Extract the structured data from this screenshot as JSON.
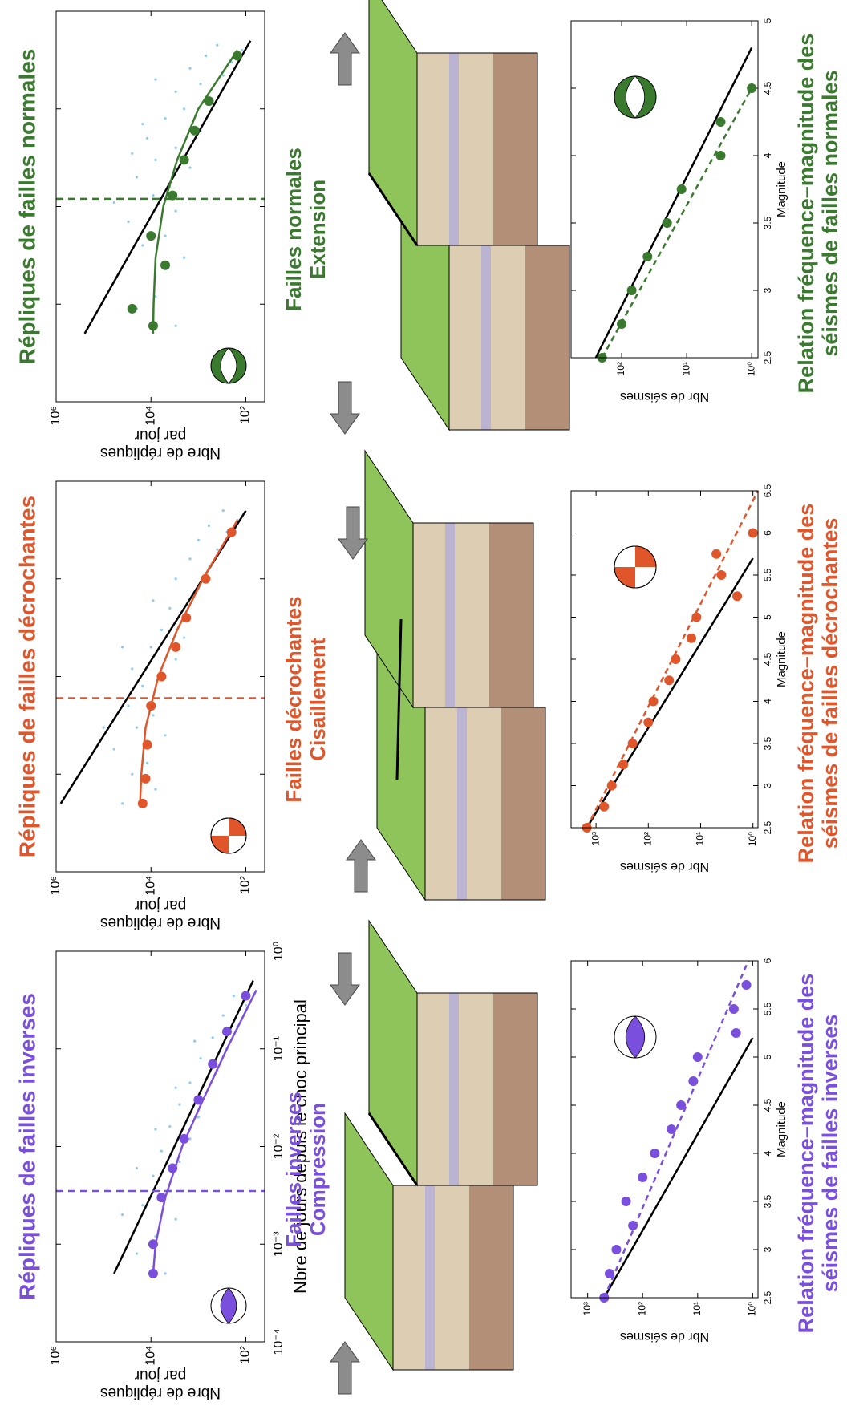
{
  "chart_data": [
    {
      "type": "scatter",
      "title": "Répliques de failles normales",
      "color": "#3a7a2f",
      "ylabel": [
        "Nbre de répliques",
        "par jour"
      ],
      "xlog": true,
      "ylog": true,
      "xlim": [
        0.0001,
        1
      ],
      "ylim": [
        40,
        1000000
      ],
      "xticks": [
        0.0001,
        0.001,
        0.01,
        0.1,
        1
      ],
      "yticks": [
        {
          "value": 1000000,
          "label": "10⁶"
        },
        {
          "value": 10000,
          "label": "10⁴"
        },
        {
          "value": 100,
          "label": "10²"
        }
      ],
      "vline": {
        "x": 0.012,
        "color": "#3a7a2f"
      },
      "series": [
        {
          "style": "dots",
          "color": "#8ecbf0",
          "x": [
            0.0006,
            0.0009,
            0.0012,
            0.002,
            0.003,
            0.004,
            0.005,
            0.007,
            0.009,
            0.011,
            0.013,
            0.016,
            0.02,
            0.025,
            0.03,
            0.04,
            0.05,
            0.06,
            0.08,
            0.1,
            0.12,
            0.15,
            0.18,
            0.22,
            0.26,
            0.3,
            0.35,
            0.4,
            0.45,
            0.2,
            0.07,
            0.035
          ],
          "y": [
            3000,
            20000,
            8000,
            50000,
            2000,
            15000,
            5000,
            30000,
            3000,
            60000,
            9000,
            4000,
            20000,
            1500,
            8000,
            3000,
            12000,
            900,
            5000,
            2000,
            600,
            3000,
            900,
            300,
            1500,
            200,
            700,
            120,
            400,
            8000,
            15000,
            25000
          ]
        },
        {
          "style": "line",
          "color": "#000000",
          "x": [
            0.0005,
            0.5
          ],
          "y": [
            250000,
            80
          ]
        },
        {
          "style": "line",
          "color": "#3a7a2f",
          "x": [
            0.0005,
            0.001,
            0.003,
            0.01,
            0.03,
            0.1,
            0.4
          ],
          "y": [
            9000,
            8800,
            8000,
            5500,
            2800,
            1000,
            150
          ]
        },
        {
          "style": "markers",
          "color": "#3a7a2f",
          "x": [
            0.0006,
            0.0009,
            0.0025,
            0.005,
            0.013,
            0.03,
            0.06,
            0.12,
            0.35
          ],
          "y": [
            9000,
            25000,
            5000,
            10000,
            3500,
            2000,
            1200,
            600,
            150
          ]
        }
      ]
    },
    {
      "type": "scatter",
      "title": "Répliques de failles décrochantes",
      "color": "#e0562a",
      "ylabel": [
        "Nbre de répliques",
        "par jour"
      ],
      "xlog": true,
      "ylog": true,
      "xlim": [
        0.0001,
        1
      ],
      "ylim": [
        40,
        1000000
      ],
      "xticks": [
        0.0001,
        0.001,
        0.01,
        0.1,
        1
      ],
      "yticks": [
        {
          "value": 1000000,
          "label": "10⁶"
        },
        {
          "value": 10000,
          "label": "10⁴"
        },
        {
          "value": 100,
          "label": "10²"
        }
      ],
      "vline": {
        "x": 0.006,
        "color": "#e0562a"
      },
      "series": [
        {
          "style": "dots",
          "color": "#8ecbf0",
          "x": [
            0.0005,
            0.0007,
            0.001,
            0.0013,
            0.0018,
            0.0025,
            0.003,
            0.004,
            0.005,
            0.006,
            0.008,
            0.01,
            0.012,
            0.015,
            0.02,
            0.025,
            0.03,
            0.04,
            0.05,
            0.06,
            0.08,
            0.1,
            0.13,
            0.16,
            0.2,
            0.25,
            0.3,
            0.35,
            0.4,
            0.5,
            0.003,
            0.02
          ],
          "y": [
            40000,
            8000,
            25000,
            12000,
            60000,
            5000,
            20000,
            9000,
            30000,
            4000,
            15000,
            6000,
            25000,
            3000,
            10000,
            2000,
            6000,
            1500,
            4000,
            9000,
            1000,
            3000,
            600,
            1500,
            400,
            1000,
            250,
            600,
            150,
            300,
            100000,
            40000
          ]
        },
        {
          "style": "line",
          "color": "#000000",
          "x": [
            0.0005,
            0.5
          ],
          "y": [
            800000,
            100
          ]
        },
        {
          "style": "line",
          "color": "#e0562a",
          "x": [
            0.0005,
            0.001,
            0.003,
            0.01,
            0.03,
            0.1,
            0.4
          ],
          "y": [
            17000,
            16000,
            13000,
            7000,
            2800,
            800,
            150
          ]
        },
        {
          "style": "markers",
          "color": "#e0562a",
          "x": [
            0.0005,
            0.0009,
            0.002,
            0.005,
            0.01,
            0.02,
            0.04,
            0.1,
            0.3
          ],
          "y": [
            15000,
            13000,
            12000,
            10000,
            6000,
            3000,
            1800,
            700,
            200
          ]
        }
      ]
    },
    {
      "type": "scatter",
      "title": "Répliques de failles inverses",
      "color": "#7a4fdd",
      "ylabel": [
        "Nbre de répliques",
        "par jour"
      ],
      "xlabel": "Nbre de jours depuis le choc principal",
      "xlog": true,
      "ylog": true,
      "xlim": [
        0.0001,
        1
      ],
      "ylim": [
        40,
        1000000
      ],
      "xticks": [
        {
          "value": 0.0001,
          "label": "10⁻⁴"
        },
        {
          "value": 0.001,
          "label": "10⁻³"
        },
        {
          "value": 0.01,
          "label": "10⁻²"
        },
        {
          "value": 0.1,
          "label": "10⁻¹"
        },
        {
          "value": 1,
          "label": "10⁰"
        }
      ],
      "yticks": [
        {
          "value": 1000000,
          "label": "10⁶"
        },
        {
          "value": 10000,
          "label": "10⁴"
        },
        {
          "value": 100,
          "label": "10²"
        }
      ],
      "vline": {
        "x": 0.0035,
        "color": "#7a4fdd"
      },
      "series": [
        {
          "style": "dots",
          "color": "#8ecbf0",
          "x": [
            0.0005,
            0.0008,
            0.0012,
            0.0018,
            0.0025,
            0.0035,
            0.005,
            0.007,
            0.009,
            0.012,
            0.016,
            0.02,
            0.027,
            0.035,
            0.045,
            0.06,
            0.08,
            0.1,
            0.13,
            0.17,
            0.22,
            0.28,
            0.35,
            0.002,
            0.006,
            0.015,
            0.04,
            0.12
          ],
          "y": [
            5000,
            20000,
            8000,
            3000,
            15000,
            4000,
            9000,
            2500,
            6000,
            1500,
            4000,
            1000,
            2500,
            700,
            1500,
            400,
            900,
            250,
            500,
            150,
            300,
            100,
            180,
            40000,
            20000,
            8000,
            3000,
            1200
          ]
        },
        {
          "style": "line",
          "color": "#000000",
          "x": [
            0.0005,
            0.5
          ],
          "y": [
            60000,
            70
          ]
        },
        {
          "style": "line",
          "color": "#7a4fdd",
          "x": [
            0.0005,
            0.001,
            0.003,
            0.01,
            0.03,
            0.1,
            0.4
          ],
          "y": [
            9000,
            8000,
            5000,
            2200,
            800,
            250,
            60
          ]
        },
        {
          "style": "markers",
          "color": "#7a4fdd",
          "x": [
            0.0005,
            0.001,
            0.003,
            0.006,
            0.012,
            0.03,
            0.07,
            0.15,
            0.35
          ],
          "y": [
            9000,
            9000,
            6000,
            3500,
            2000,
            1000,
            500,
            250,
            100
          ]
        }
      ]
    },
    {
      "type": "scatter",
      "title": [
        "Relation fréquence–magnitude des",
        "séismes de failles normales"
      ],
      "color": "#3a7a2f",
      "ylabel": "Nbr de séismes",
      "xlabel": "Magnitude",
      "ylog": true,
      "xlim": [
        2.5,
        5
      ],
      "ylim": [
        0.8,
        600
      ],
      "xticks": [
        2.5,
        3,
        3.5,
        4,
        4.5,
        5
      ],
      "yticks": [
        {
          "value": 1,
          "label": "10⁰"
        },
        {
          "value": 10,
          "label": "10¹"
        },
        {
          "value": 100,
          "label": "10²"
        }
      ],
      "series": [
        {
          "style": "line",
          "color": "#000000",
          "x": [
            2.5,
            4.8
          ],
          "y": [
            250,
            1
          ]
        },
        {
          "style": "dashed",
          "color": "#3a7a2f",
          "x": [
            2.5,
            4.5
          ],
          "y": [
            200,
            1
          ]
        },
        {
          "style": "markers",
          "color": "#3a7a2f",
          "x": [
            2.5,
            2.75,
            3,
            3.25,
            3.5,
            3.75,
            4,
            4.25,
            4.5
          ],
          "y": [
            200,
            100,
            70,
            40,
            20,
            12,
            3,
            3,
            1
          ]
        }
      ]
    },
    {
      "type": "scatter",
      "title": [
        "Relation fréquence–magnitude des",
        "séismes de failles décrochantes"
      ],
      "color": "#e0562a",
      "ylabel": "Nbr de séismes",
      "xlabel": "Magnitude",
      "ylog": true,
      "xlim": [
        2.5,
        6.5
      ],
      "ylim": [
        0.8,
        3000
      ],
      "xticks": [
        2.5,
        3,
        3.5,
        4,
        4.5,
        5,
        5.5,
        6,
        6.5
      ],
      "yticks": [
        {
          "value": 1,
          "label": "10⁰"
        },
        {
          "value": 10,
          "label": "10¹"
        },
        {
          "value": 100,
          "label": "10²"
        },
        {
          "value": 1000,
          "label": "10³"
        }
      ],
      "series": [
        {
          "style": "line",
          "color": "#000000",
          "x": [
            2.5,
            5.7
          ],
          "y": [
            1500,
            1
          ]
        },
        {
          "style": "dashed",
          "color": "#e0562a",
          "x": [
            2.5,
            6.5
          ],
          "y": [
            1500,
            0.8
          ]
        },
        {
          "style": "markers",
          "color": "#e0562a",
          "x": [
            2.5,
            2.75,
            3,
            3.25,
            3.5,
            3.75,
            4,
            4.25,
            4.5,
            4.75,
            5,
            5.25,
            5.5,
            5.75,
            6
          ],
          "y": [
            1500,
            700,
            500,
            300,
            200,
            100,
            80,
            40,
            30,
            15,
            12,
            2,
            4,
            5,
            1
          ]
        }
      ]
    },
    {
      "type": "scatter",
      "title": [
        "Relation fréquence–magnitude des",
        "séismes de failles inverses"
      ],
      "color": "#7a4fdd",
      "ylabel": "Nbr de séismes",
      "xlabel": "Magnitude",
      "ylog": true,
      "xlim": [
        2.5,
        6
      ],
      "ylim": [
        0.8,
        2000
      ],
      "xticks": [
        2.5,
        3,
        3.5,
        4,
        4.5,
        5,
        5.5,
        6
      ],
      "yticks": [
        {
          "value": 1,
          "label": "10⁰"
        },
        {
          "value": 10,
          "label": "10¹"
        },
        {
          "value": 100,
          "label": "10²"
        },
        {
          "value": 1000,
          "label": "10³"
        }
      ],
      "series": [
        {
          "style": "line",
          "color": "#000000",
          "x": [
            2.5,
            5.2
          ],
          "y": [
            500,
            1
          ]
        },
        {
          "style": "dashed",
          "color": "#7a4fdd",
          "x": [
            2.5,
            6
          ],
          "y": [
            500,
            1.2
          ]
        },
        {
          "style": "markers",
          "color": "#7a4fdd",
          "x": [
            2.5,
            2.75,
            3,
            3.25,
            3.5,
            3.75,
            4,
            4.25,
            4.5,
            4.75,
            5,
            5.25,
            5.5,
            5.75
          ],
          "y": [
            500,
            400,
            300,
            150,
            200,
            100,
            60,
            30,
            20,
            12,
            10,
            2,
            2.2,
            1.3
          ]
        }
      ]
    }
  ],
  "diagrams": [
    {
      "title": [
        "Failles normales",
        "Extension"
      ],
      "color": "#3a7a2f"
    },
    {
      "title": [
        "Failles décrochantes",
        "Cisaillement"
      ],
      "color": "#e0562a"
    },
    {
      "title": [
        "Failles inverses",
        "Compression"
      ],
      "color": "#7a4fdd"
    }
  ]
}
